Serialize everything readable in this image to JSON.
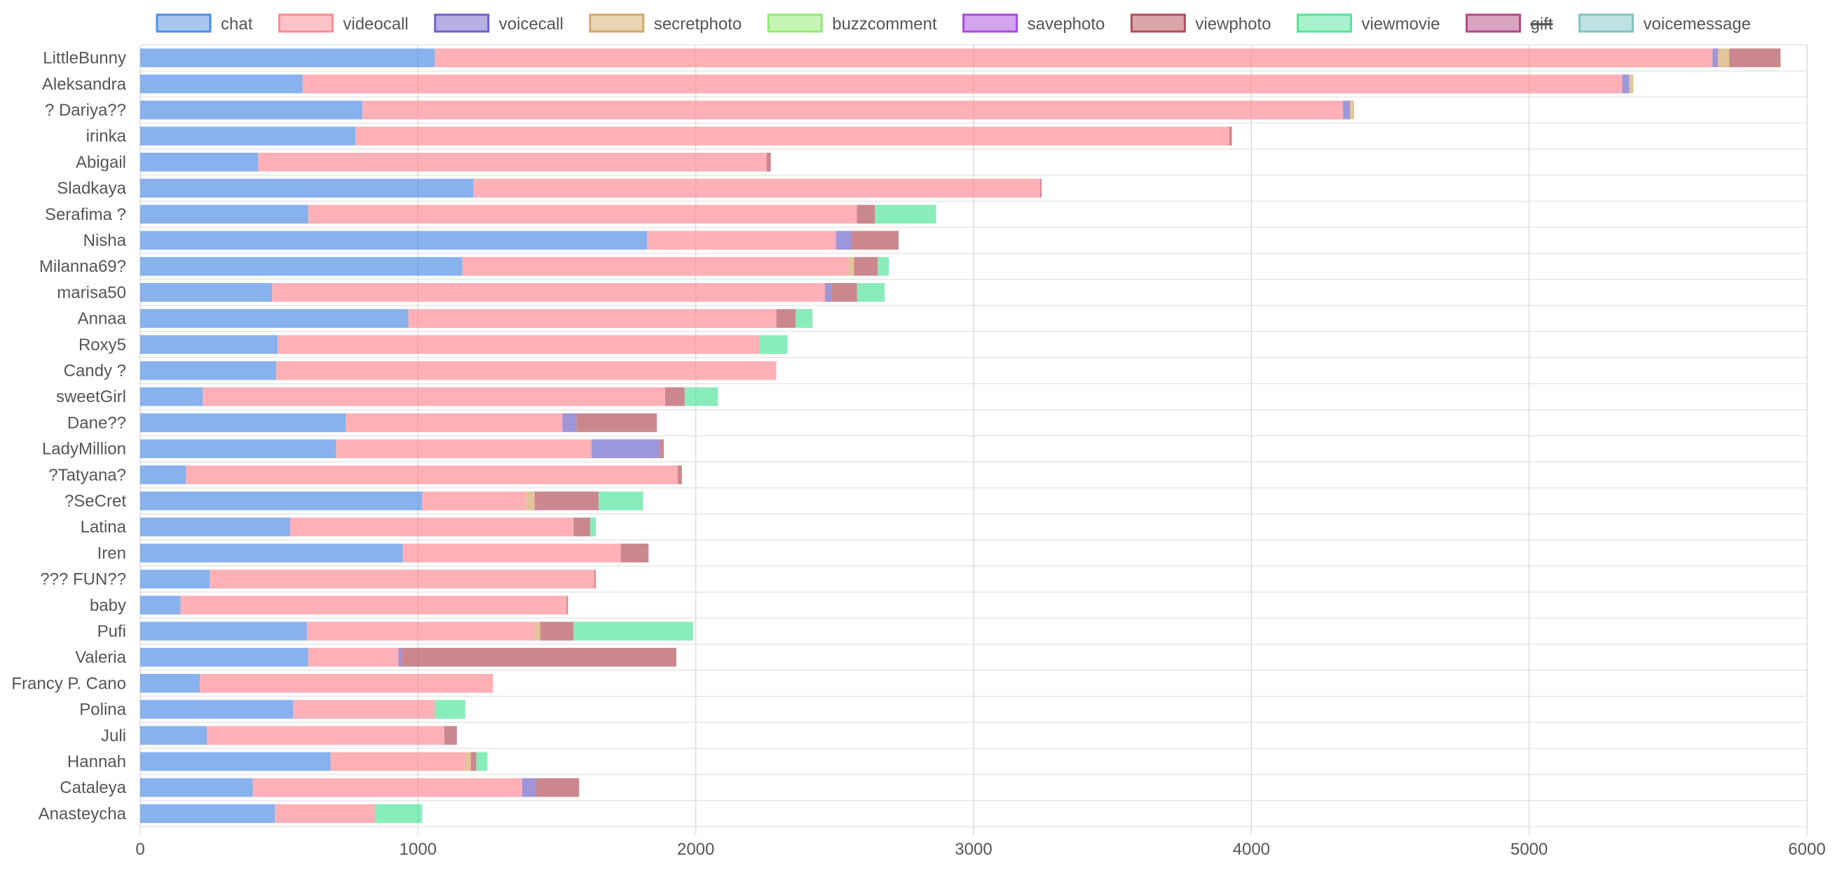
{
  "chart_data": {
    "type": "bar",
    "orientation": "horizontal",
    "stacked": true,
    "grid": true,
    "legend_position": "top",
    "xlim": [
      0,
      6000
    ],
    "x_ticks": [
      "0",
      "1000",
      "2000",
      "3000",
      "4000",
      "5000",
      "6000"
    ],
    "categories": [
      "LittleBunny",
      "Aleksandra",
      "? Dariya??",
      "irinka",
      "Abigail",
      "Sladkaya",
      "Serafima ?",
      "Nisha",
      "Milanna69?",
      "marisa50",
      "Annaa",
      "Roxy5",
      "Candy ?",
      "sweetGirl",
      "Dane??",
      "LadyMillion",
      "?Tatyana?",
      "?SeCret",
      "Latina",
      "Iren",
      "??? FUN??",
      "baby",
      "Pufi",
      "Valeria",
      "Francy P. Cano",
      "Polina",
      "Juli",
      "Hannah",
      "Cataleya",
      "Anasteycha"
    ],
    "series": [
      {
        "name": "chat",
        "color": "#4f8ee6",
        "hidden": false,
        "values": [
          1060,
          585,
          800,
          775,
          425,
          1200,
          605,
          1825,
          1160,
          475,
          965,
          495,
          490,
          225,
          740,
          705,
          165,
          1015,
          540,
          945,
          250,
          145,
          600,
          605,
          215,
          550,
          240,
          685,
          405,
          485
        ]
      },
      {
        "name": "videocall",
        "color": "#ff8a93",
        "hidden": false,
        "values": [
          4600,
          4750,
          3530,
          3145,
          1830,
          2040,
          1975,
          680,
          1390,
          1990,
          1325,
          1735,
          1800,
          1665,
          780,
          920,
          1770,
          375,
          1020,
          785,
          1385,
          1390,
          820,
          325,
          1055,
          510,
          855,
          485,
          970,
          360
        ]
      },
      {
        "name": "voicecall",
        "color": "#6f64c8",
        "hidden": false,
        "values": [
          20,
          25,
          25,
          0,
          0,
          0,
          0,
          55,
          0,
          25,
          0,
          0,
          0,
          0,
          50,
          245,
          0,
          0,
          0,
          0,
          0,
          0,
          0,
          10,
          0,
          0,
          0,
          0,
          50,
          0
        ]
      },
      {
        "name": "secretphoto",
        "color": "#d4a96a",
        "hidden": false,
        "values": [
          40,
          15,
          15,
          0,
          0,
          0,
          0,
          0,
          20,
          0,
          0,
          0,
          0,
          0,
          0,
          0,
          0,
          30,
          0,
          0,
          0,
          0,
          20,
          0,
          0,
          0,
          0,
          20,
          0,
          0
        ]
      },
      {
        "name": "buzzcomment",
        "color": "#90ec6e",
        "hidden": false,
        "values": [
          0,
          0,
          0,
          0,
          0,
          0,
          0,
          0,
          0,
          0,
          0,
          0,
          0,
          0,
          0,
          0,
          0,
          0,
          0,
          0,
          0,
          0,
          0,
          0,
          0,
          0,
          0,
          0,
          0,
          0
        ]
      },
      {
        "name": "savephoto",
        "color": "#a94ae0",
        "hidden": false,
        "values": [
          0,
          0,
          0,
          0,
          0,
          0,
          0,
          0,
          0,
          0,
          0,
          0,
          0,
          0,
          0,
          0,
          0,
          0,
          0,
          0,
          0,
          0,
          0,
          0,
          0,
          0,
          0,
          0,
          0,
          0
        ]
      },
      {
        "name": "viewphoto",
        "color": "#b34e59",
        "hidden": false,
        "values": [
          185,
          0,
          0,
          10,
          15,
          5,
          65,
          170,
          85,
          90,
          70,
          0,
          0,
          70,
          290,
          15,
          15,
          230,
          60,
          100,
          5,
          5,
          120,
          990,
          0,
          0,
          45,
          20,
          155,
          0
        ]
      },
      {
        "name": "viewmovie",
        "color": "#4fe59a",
        "hidden": false,
        "values": [
          0,
          0,
          0,
          0,
          0,
          0,
          220,
          0,
          40,
          100,
          60,
          100,
          0,
          120,
          0,
          0,
          0,
          160,
          20,
          0,
          0,
          0,
          430,
          0,
          0,
          110,
          0,
          40,
          0,
          170
        ]
      },
      {
        "name": "gift",
        "color": "#b04a86",
        "hidden": true,
        "values": [
          0,
          0,
          0,
          0,
          0,
          0,
          0,
          0,
          0,
          0,
          0,
          0,
          0,
          0,
          0,
          0,
          0,
          0,
          0,
          0,
          0,
          0,
          0,
          0,
          0,
          0,
          0,
          0,
          0,
          0
        ]
      },
      {
        "name": "voicemessage",
        "color": "#7fc4c4",
        "hidden": false,
        "values": [
          0,
          0,
          0,
          0,
          0,
          0,
          0,
          0,
          0,
          0,
          0,
          0,
          0,
          0,
          0,
          0,
          0,
          0,
          0,
          0,
          0,
          0,
          0,
          0,
          0,
          0,
          0,
          0,
          0,
          0
        ]
      }
    ]
  }
}
